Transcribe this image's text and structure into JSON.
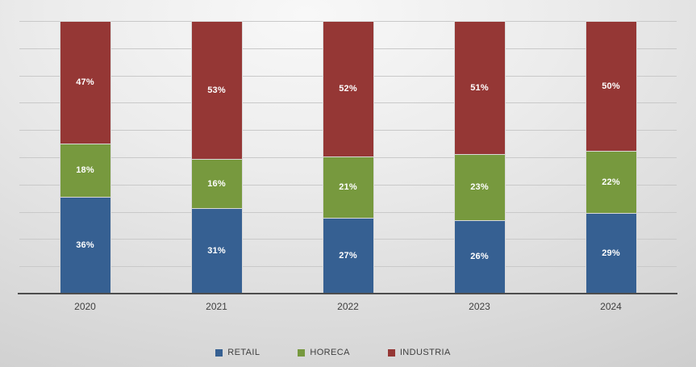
{
  "chart_data": {
    "type": "bar",
    "variant": "stacked-column-percent",
    "title": "",
    "xlabel": "",
    "ylabel": "",
    "ylim": [
      0,
      100
    ],
    "grid": true,
    "gridline_count": 10,
    "legend_position": "bottom",
    "categories": [
      "2020",
      "2021",
      "2022",
      "2023",
      "2024"
    ],
    "series": [
      {
        "name": "RETAIL",
        "color": "#366092",
        "values": [
          36,
          31,
          27,
          26,
          29
        ],
        "labels": [
          "36%",
          "31%",
          "27%",
          "26%",
          "29%"
        ]
      },
      {
        "name": "HORECA",
        "color": "#77993E",
        "values": [
          18,
          16,
          21,
          23,
          22
        ],
        "labels": [
          "18%",
          "16%",
          "21%",
          "23%",
          "22%"
        ]
      },
      {
        "name": "INDUSTRIA",
        "color": "#953735",
        "values": [
          47,
          53,
          52,
          51,
          50
        ],
        "labels": [
          "47%",
          "53%",
          "52%",
          "51%",
          "50%"
        ]
      }
    ]
  },
  "styles": {
    "data_label_color": "#ffffff",
    "axis_label_color": "#404040",
    "legend_label_color": "#404040",
    "gridline_color": "#c9c9c9",
    "axis_line_color": "#4d4d4d",
    "segment_border_color": "#d9d9d9",
    "background_light": "#f8f8f8",
    "background_dark": "#c0c0c0"
  }
}
